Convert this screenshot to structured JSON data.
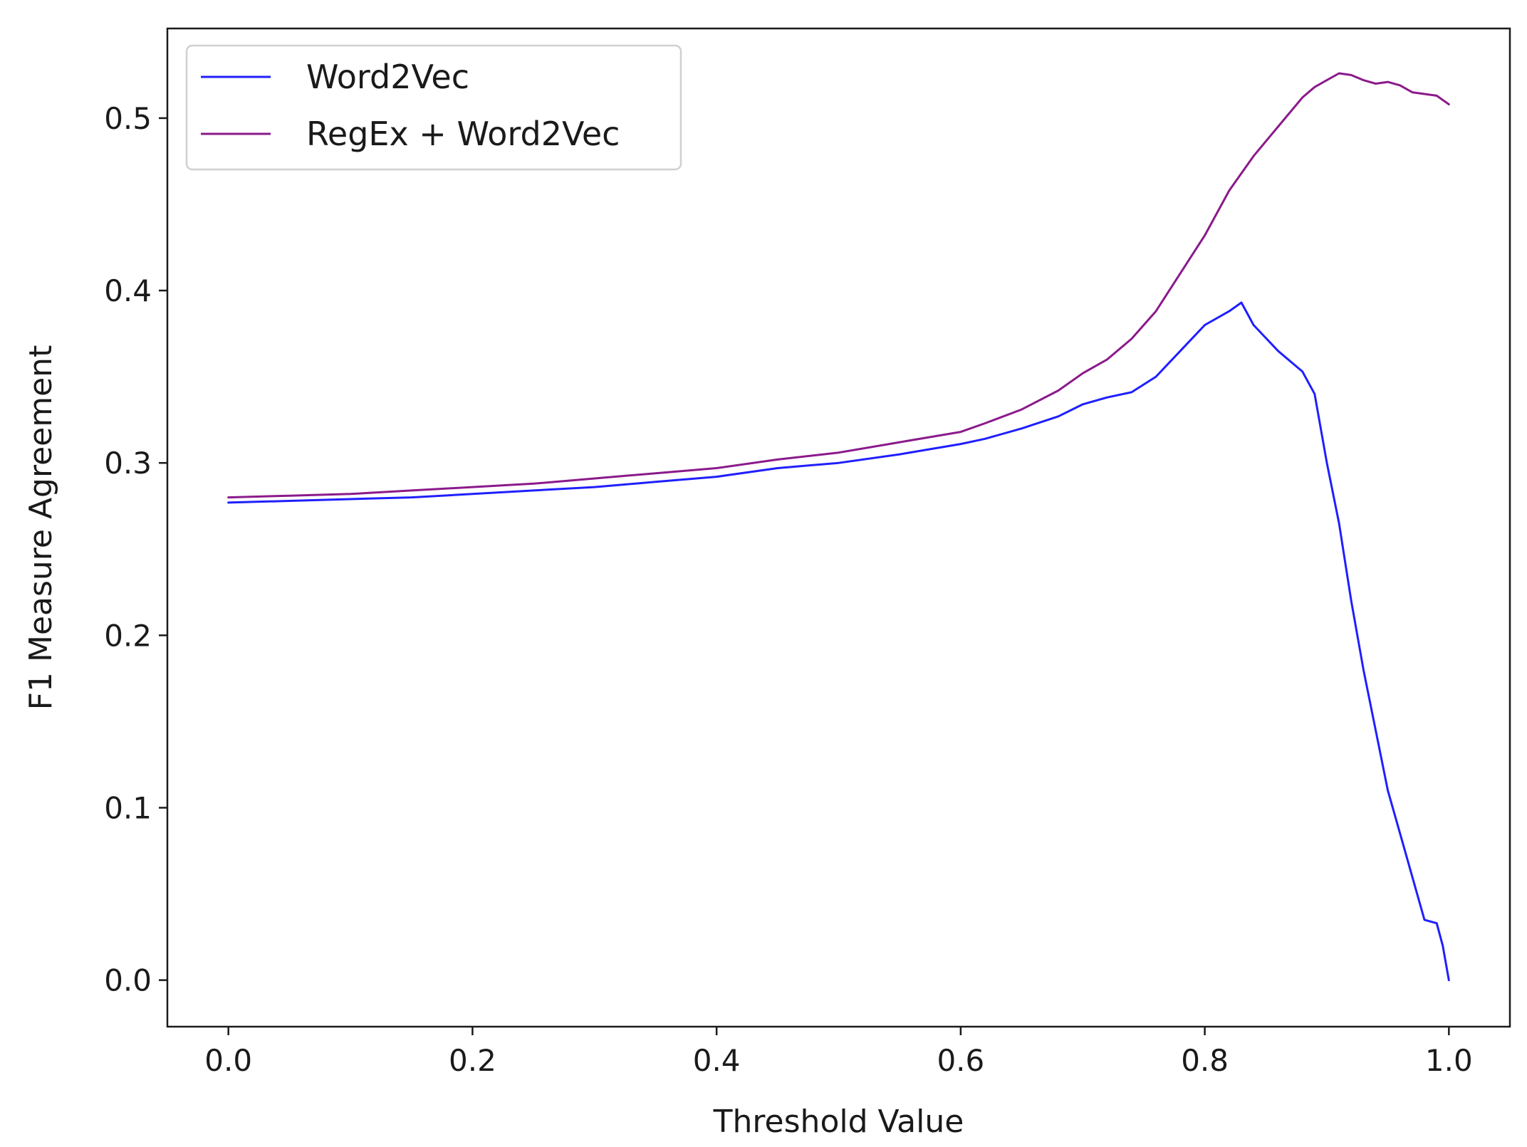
{
  "chart_data": {
    "type": "line",
    "title": "",
    "xlabel": "Threshold Value",
    "ylabel": "F1 Measure Agreement",
    "xlim": [
      -0.05,
      1.05
    ],
    "ylim": [
      -0.027,
      0.552
    ],
    "x_ticks": [
      "0.0",
      "0.2",
      "0.4",
      "0.6",
      "0.8",
      "1.0"
    ],
    "y_ticks": [
      "0.0",
      "0.1",
      "0.2",
      "0.3",
      "0.4",
      "0.5"
    ],
    "grid": false,
    "legend_position": "top-left",
    "series": [
      {
        "name": "Word2Vec",
        "color": "#1f1fff",
        "x": [
          0.0,
          0.05,
          0.1,
          0.15,
          0.2,
          0.25,
          0.3,
          0.35,
          0.4,
          0.45,
          0.5,
          0.55,
          0.6,
          0.62,
          0.65,
          0.68,
          0.7,
          0.72,
          0.74,
          0.76,
          0.78,
          0.8,
          0.82,
          0.83,
          0.84,
          0.86,
          0.88,
          0.89,
          0.9,
          0.91,
          0.92,
          0.93,
          0.94,
          0.95,
          0.96,
          0.97,
          0.98,
          0.99,
          0.995,
          1.0
        ],
        "y": [
          0.277,
          0.278,
          0.279,
          0.28,
          0.282,
          0.284,
          0.286,
          0.289,
          0.292,
          0.297,
          0.3,
          0.305,
          0.311,
          0.314,
          0.32,
          0.327,
          0.334,
          0.338,
          0.341,
          0.35,
          0.365,
          0.38,
          0.388,
          0.393,
          0.38,
          0.365,
          0.353,
          0.34,
          0.3,
          0.265,
          0.22,
          0.18,
          0.145,
          0.11,
          0.085,
          0.06,
          0.035,
          0.033,
          0.02,
          0.0
        ]
      },
      {
        "name": "RegEx + Word2Vec",
        "color": "#8b1a8b",
        "x": [
          0.0,
          0.05,
          0.1,
          0.15,
          0.2,
          0.25,
          0.3,
          0.35,
          0.4,
          0.45,
          0.5,
          0.55,
          0.6,
          0.62,
          0.65,
          0.68,
          0.7,
          0.72,
          0.74,
          0.76,
          0.78,
          0.8,
          0.82,
          0.84,
          0.86,
          0.88,
          0.89,
          0.9,
          0.91,
          0.92,
          0.93,
          0.94,
          0.95,
          0.96,
          0.97,
          0.98,
          0.99,
          1.0
        ],
        "y": [
          0.28,
          0.281,
          0.282,
          0.284,
          0.286,
          0.288,
          0.291,
          0.294,
          0.297,
          0.302,
          0.306,
          0.312,
          0.318,
          0.323,
          0.331,
          0.342,
          0.352,
          0.36,
          0.372,
          0.388,
          0.41,
          0.432,
          0.458,
          0.478,
          0.495,
          0.512,
          0.518,
          0.522,
          0.526,
          0.525,
          0.522,
          0.52,
          0.521,
          0.519,
          0.515,
          0.514,
          0.513,
          0.508
        ]
      }
    ]
  }
}
